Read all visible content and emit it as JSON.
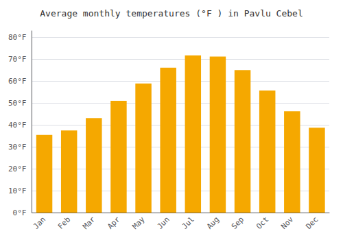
{
  "chart_data": {
    "type": "bar",
    "title": "Average monthly temperatures (°F ) in Pavlu Cebel",
    "categories": [
      "Jan",
      "Feb",
      "Mar",
      "Apr",
      "May",
      "Jun",
      "Jul",
      "Aug",
      "Sep",
      "Oct",
      "Nov",
      "Dec"
    ],
    "values": [
      35.5,
      37.5,
      43.2,
      51.1,
      59.0,
      66.2,
      71.8,
      71.3,
      65.1,
      55.8,
      46.3,
      38.8
    ],
    "color": "#F5A800",
    "ylim": [
      0,
      83
    ],
    "yticks": [
      {
        "value": 0,
        "label": "0°F"
      },
      {
        "value": 10,
        "label": "10°F"
      },
      {
        "value": 20,
        "label": "20°F"
      },
      {
        "value": 30,
        "label": "30°F"
      },
      {
        "value": 40,
        "label": "40°F"
      },
      {
        "value": 50,
        "label": "50°F"
      },
      {
        "value": 60,
        "label": "60°F"
      },
      {
        "value": 70,
        "label": "70°F"
      },
      {
        "value": 80,
        "label": "80°F"
      }
    ],
    "grid": true
  }
}
